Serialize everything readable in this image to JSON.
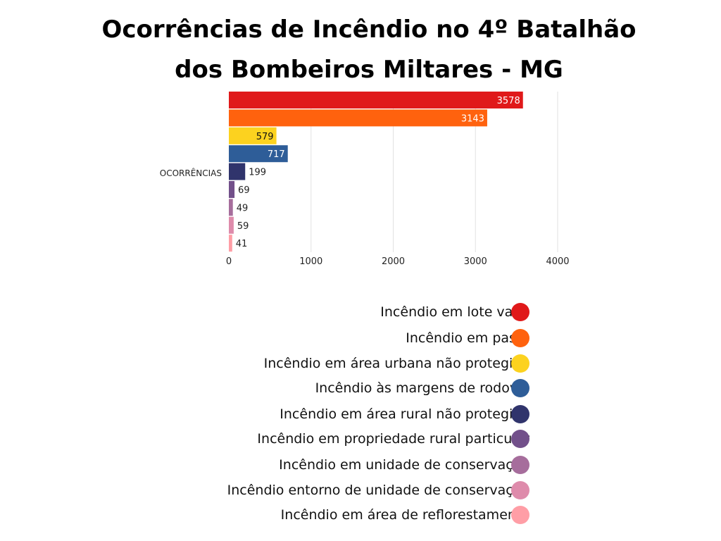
{
  "title_line1": "Ocorrências de Incêndio no 4º Batalhão",
  "title_line2": "dos Bombeiros Miltares - MG",
  "chart_data": {
    "type": "bar",
    "orientation": "horizontal",
    "title": "Ocorrências de Incêndio no 4º Batalhão dos Bombeiros Miltares - MG",
    "category_label": "OCORRÊNCIAS",
    "xlabel": "",
    "ylabel": "",
    "xlim": [
      0,
      4000
    ],
    "xticks": [
      0,
      1000,
      2000,
      3000,
      4000
    ],
    "grid": true,
    "legend_position": "bottom-right",
    "series": [
      {
        "name": "Incêndio em lote vago",
        "value": 3578,
        "color": "#E0191A",
        "label_color": "#ffffff"
      },
      {
        "name": "Incêndio em pasto",
        "value": 3143,
        "color": "#FF620E",
        "label_color": "#ffffff"
      },
      {
        "name": "Incêndio em área urbana não protegida",
        "value": 579,
        "color": "#FCD21F",
        "label_color": "#111111"
      },
      {
        "name": "Incêndio às margens de rodovia",
        "value": 717,
        "color": "#2E5D98",
        "label_color": "#ffffff"
      },
      {
        "name": "Incêndio em área rural não protegida",
        "value": 199,
        "color": "#30346C",
        "label_color": "#222222"
      },
      {
        "name": "Incêndio em propriedade rural particular",
        "value": 69,
        "color": "#72508A",
        "label_color": "#222222"
      },
      {
        "name": "Incêndio em unidade de conservação",
        "value": 49,
        "color": "#A66D9C",
        "label_color": "#222222"
      },
      {
        "name": "Incêndio entorno de unidade de conservação",
        "value": 59,
        "color": "#DE8BAB",
        "label_color": "#222222"
      },
      {
        "name": "Incêndio em área de reflorestamento",
        "value": 41,
        "color": "#FF9EA6",
        "label_color": "#222222"
      }
    ]
  }
}
